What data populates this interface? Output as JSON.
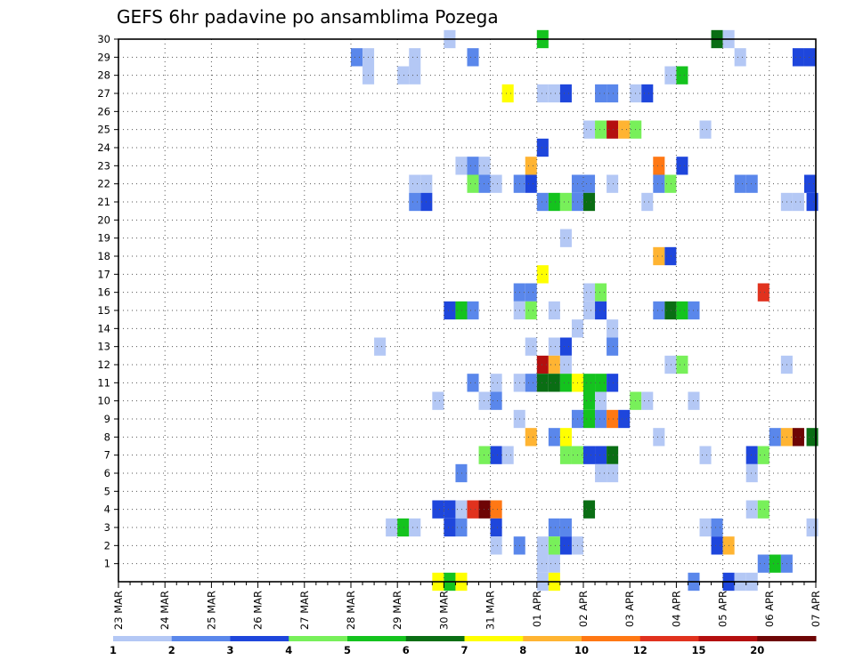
{
  "chart_data": {
    "type": "heatmap",
    "title": "GEFS 6hr padavine po ansamblima Pozega",
    "xlabel": "",
    "ylabel": "",
    "x_tick_labels": [
      "23 MAR",
      "24 MAR",
      "25 MAR",
      "26 MAR",
      "27 MAR",
      "28 MAR",
      "29 MAR",
      "30 MAR",
      "31 MAR",
      "01 APR",
      "02 APR",
      "03 APR",
      "04 APR",
      "05 APR",
      "06 APR",
      "07 APR"
    ],
    "x_steps_per_day": 4,
    "x_range": [
      0,
      60
    ],
    "y_tick_labels": [
      1,
      2,
      3,
      4,
      5,
      6,
      7,
      8,
      9,
      10,
      11,
      12,
      13,
      14,
      15,
      16,
      17,
      18,
      19,
      20,
      21,
      22,
      23,
      24,
      25,
      26,
      27,
      28,
      29,
      30
    ],
    "y_range": [
      0,
      30
    ],
    "grid": true,
    "colorbar": {
      "boundaries": [
        "1",
        "2",
        "3",
        "4",
        "5",
        "6",
        "7",
        "8",
        "10",
        "12",
        "15",
        "20"
      ],
      "colors": [
        "#b4c8f5",
        "#5a87eb",
        "#1e46dc",
        "#78f05a",
        "#14c31e",
        "#0a6e14",
        "#ffff00",
        "#ffb432",
        "#ff7814",
        "#e1321e",
        "#b40f0f",
        "#6e0505"
      ],
      "placement": "bottom"
    },
    "cells": [
      {
        "x": 28.5,
        "m": 30,
        "c": 0
      },
      {
        "x": 36.5,
        "m": 30,
        "c": 4
      },
      {
        "x": 51.5,
        "m": 30,
        "c": 5
      },
      {
        "x": 52.5,
        "m": 30,
        "c": 0
      },
      {
        "x": 20.5,
        "m": 29,
        "c": 1
      },
      {
        "x": 21.5,
        "m": 29,
        "c": 0
      },
      {
        "x": 25.5,
        "m": 29,
        "c": 0
      },
      {
        "x": 30.5,
        "m": 29,
        "c": 1
      },
      {
        "x": 53.5,
        "m": 29,
        "c": 0
      },
      {
        "x": 58.5,
        "m": 29,
        "c": 2
      },
      {
        "x": 59.5,
        "m": 29,
        "c": 2
      },
      {
        "x": 21.5,
        "m": 28,
        "c": 0
      },
      {
        "x": 24.5,
        "m": 28,
        "c": 0
      },
      {
        "x": 25.5,
        "m": 28,
        "c": 0
      },
      {
        "x": 47.5,
        "m": 28,
        "c": 0
      },
      {
        "x": 48.5,
        "m": 28,
        "c": 4
      },
      {
        "x": 33.5,
        "m": 27,
        "c": 6
      },
      {
        "x": 36.5,
        "m": 27,
        "c": 0
      },
      {
        "x": 37.5,
        "m": 27,
        "c": 0
      },
      {
        "x": 38.5,
        "m": 27,
        "c": 2
      },
      {
        "x": 41.5,
        "m": 27,
        "c": 1
      },
      {
        "x": 42.5,
        "m": 27,
        "c": 1
      },
      {
        "x": 44.5,
        "m": 27,
        "c": 0
      },
      {
        "x": 45.5,
        "m": 27,
        "c": 2
      },
      {
        "x": 40.5,
        "m": 25,
        "c": 0
      },
      {
        "x": 41.5,
        "m": 25,
        "c": 3
      },
      {
        "x": 42.5,
        "m": 25,
        "c": 10
      },
      {
        "x": 43.5,
        "m": 25,
        "c": 7
      },
      {
        "x": 44.5,
        "m": 25,
        "c": 3
      },
      {
        "x": 50.5,
        "m": 25,
        "c": 0
      },
      {
        "x": 36.5,
        "m": 24,
        "c": 2
      },
      {
        "x": 29.5,
        "m": 23,
        "c": 0
      },
      {
        "x": 30.5,
        "m": 23,
        "c": 1
      },
      {
        "x": 31.5,
        "m": 23,
        "c": 0
      },
      {
        "x": 35.5,
        "m": 23,
        "c": 7
      },
      {
        "x": 46.5,
        "m": 23,
        "c": 8
      },
      {
        "x": 48.5,
        "m": 23,
        "c": 2
      },
      {
        "x": 25.5,
        "m": 22,
        "c": 0
      },
      {
        "x": 26.5,
        "m": 22,
        "c": 0
      },
      {
        "x": 30.5,
        "m": 22,
        "c": 3
      },
      {
        "x": 31.5,
        "m": 22,
        "c": 1
      },
      {
        "x": 32.5,
        "m": 22,
        "c": 0
      },
      {
        "x": 34.5,
        "m": 22,
        "c": 1
      },
      {
        "x": 35.5,
        "m": 22,
        "c": 2
      },
      {
        "x": 39.5,
        "m": 22,
        "c": 1
      },
      {
        "x": 40.5,
        "m": 22,
        "c": 1
      },
      {
        "x": 42.5,
        "m": 22,
        "c": 0
      },
      {
        "x": 46.5,
        "m": 22,
        "c": 1
      },
      {
        "x": 47.5,
        "m": 22,
        "c": 3
      },
      {
        "x": 53.5,
        "m": 22,
        "c": 1
      },
      {
        "x": 54.5,
        "m": 22,
        "c": 1
      },
      {
        "x": 59.5,
        "m": 22,
        "c": 2
      },
      {
        "x": 25.5,
        "m": 21,
        "c": 1
      },
      {
        "x": 26.5,
        "m": 21,
        "c": 2
      },
      {
        "x": 36.5,
        "m": 21,
        "c": 1
      },
      {
        "x": 37.5,
        "m": 21,
        "c": 4
      },
      {
        "x": 38.5,
        "m": 21,
        "c": 3
      },
      {
        "x": 39.5,
        "m": 21,
        "c": 1
      },
      {
        "x": 40.5,
        "m": 21,
        "c": 5
      },
      {
        "x": 45.5,
        "m": 21,
        "c": 0
      },
      {
        "x": 57.5,
        "m": 21,
        "c": 0
      },
      {
        "x": 58.5,
        "m": 21,
        "c": 0
      },
      {
        "x": 59.7,
        "m": 21,
        "c": 2
      },
      {
        "x": 38.5,
        "m": 19,
        "c": 0
      },
      {
        "x": 46.5,
        "m": 18,
        "c": 7
      },
      {
        "x": 47.5,
        "m": 18,
        "c": 2
      },
      {
        "x": 36.5,
        "m": 17,
        "c": 6
      },
      {
        "x": 34.5,
        "m": 16,
        "c": 1
      },
      {
        "x": 35.5,
        "m": 16,
        "c": 1
      },
      {
        "x": 40.5,
        "m": 16,
        "c": 0
      },
      {
        "x": 41.5,
        "m": 16,
        "c": 3
      },
      {
        "x": 55.5,
        "m": 16,
        "c": 9
      },
      {
        "x": 28.5,
        "m": 15,
        "c": 2
      },
      {
        "x": 29.5,
        "m": 15,
        "c": 4
      },
      {
        "x": 30.5,
        "m": 15,
        "c": 1
      },
      {
        "x": 34.5,
        "m": 15,
        "c": 0
      },
      {
        "x": 35.5,
        "m": 15,
        "c": 3
      },
      {
        "x": 37.5,
        "m": 15,
        "c": 0
      },
      {
        "x": 40.5,
        "m": 15,
        "c": 0
      },
      {
        "x": 41.5,
        "m": 15,
        "c": 2
      },
      {
        "x": 46.5,
        "m": 15,
        "c": 1
      },
      {
        "x": 47.5,
        "m": 15,
        "c": 5
      },
      {
        "x": 48.5,
        "m": 15,
        "c": 4
      },
      {
        "x": 49.5,
        "m": 15,
        "c": 1
      },
      {
        "x": 39.5,
        "m": 14,
        "c": 0
      },
      {
        "x": 42.5,
        "m": 14,
        "c": 0
      },
      {
        "x": 22.5,
        "m": 13,
        "c": 0
      },
      {
        "x": 35.5,
        "m": 13,
        "c": 0
      },
      {
        "x": 37.5,
        "m": 13,
        "c": 0
      },
      {
        "x": 38.5,
        "m": 13,
        "c": 2
      },
      {
        "x": 42.5,
        "m": 13,
        "c": 1
      },
      {
        "x": 36.5,
        "m": 12,
        "c": 10
      },
      {
        "x": 37.5,
        "m": 12,
        "c": 7
      },
      {
        "x": 38.5,
        "m": 12,
        "c": 0
      },
      {
        "x": 47.5,
        "m": 12,
        "c": 0
      },
      {
        "x": 48.5,
        "m": 12,
        "c": 3
      },
      {
        "x": 57.5,
        "m": 12,
        "c": 0
      },
      {
        "x": 30.5,
        "m": 11,
        "c": 1
      },
      {
        "x": 32.5,
        "m": 11,
        "c": 0
      },
      {
        "x": 34.5,
        "m": 11,
        "c": 0
      },
      {
        "x": 35.5,
        "m": 11,
        "c": 1
      },
      {
        "x": 36.5,
        "m": 11,
        "c": 5
      },
      {
        "x": 37.5,
        "m": 11,
        "c": 5
      },
      {
        "x": 38.5,
        "m": 11,
        "c": 4
      },
      {
        "x": 39.5,
        "m": 11,
        "c": 6
      },
      {
        "x": 40.5,
        "m": 11,
        "c": 4
      },
      {
        "x": 41.5,
        "m": 11,
        "c": 4
      },
      {
        "x": 42.5,
        "m": 11,
        "c": 2
      },
      {
        "x": 27.5,
        "m": 10,
        "c": 0
      },
      {
        "x": 31.5,
        "m": 10,
        "c": 0
      },
      {
        "x": 32.5,
        "m": 10,
        "c": 1
      },
      {
        "x": 40.5,
        "m": 10,
        "c": 4
      },
      {
        "x": 41.5,
        "m": 10,
        "c": 0
      },
      {
        "x": 44.5,
        "m": 10,
        "c": 3
      },
      {
        "x": 45.5,
        "m": 10,
        "c": 0
      },
      {
        "x": 49.5,
        "m": 10,
        "c": 0
      },
      {
        "x": 34.5,
        "m": 9,
        "c": 0
      },
      {
        "x": 39.5,
        "m": 9,
        "c": 1
      },
      {
        "x": 40.5,
        "m": 9,
        "c": 4
      },
      {
        "x": 41.5,
        "m": 9,
        "c": 1
      },
      {
        "x": 42.5,
        "m": 9,
        "c": 8
      },
      {
        "x": 43.5,
        "m": 9,
        "c": 2
      },
      {
        "x": 35.5,
        "m": 8,
        "c": 7
      },
      {
        "x": 37.5,
        "m": 8,
        "c": 1
      },
      {
        "x": 38.5,
        "m": 8,
        "c": 6
      },
      {
        "x": 46.5,
        "m": 8,
        "c": 0
      },
      {
        "x": 56.5,
        "m": 8,
        "c": 1
      },
      {
        "x": 57.5,
        "m": 8,
        "c": 7
      },
      {
        "x": 58.5,
        "m": 8,
        "c": 11
      },
      {
        "x": 59.7,
        "m": 8,
        "c": 5
      },
      {
        "x": 31.5,
        "m": 7,
        "c": 3
      },
      {
        "x": 32.5,
        "m": 7,
        "c": 2
      },
      {
        "x": 33.5,
        "m": 7,
        "c": 0
      },
      {
        "x": 38.5,
        "m": 7,
        "c": 3
      },
      {
        "x": 39.5,
        "m": 7,
        "c": 3
      },
      {
        "x": 40.5,
        "m": 7,
        "c": 2
      },
      {
        "x": 41.5,
        "m": 7,
        "c": 2
      },
      {
        "x": 42.5,
        "m": 7,
        "c": 5
      },
      {
        "x": 50.5,
        "m": 7,
        "c": 0
      },
      {
        "x": 54.5,
        "m": 7,
        "c": 2
      },
      {
        "x": 55.5,
        "m": 7,
        "c": 3
      },
      {
        "x": 29.5,
        "m": 6,
        "c": 1
      },
      {
        "x": 41.5,
        "m": 6,
        "c": 0
      },
      {
        "x": 42.5,
        "m": 6,
        "c": 0
      },
      {
        "x": 54.5,
        "m": 6,
        "c": 0
      },
      {
        "x": 27.5,
        "m": 4,
        "c": 2
      },
      {
        "x": 28.5,
        "m": 4,
        "c": 2
      },
      {
        "x": 29.5,
        "m": 4,
        "c": 0
      },
      {
        "x": 30.5,
        "m": 4,
        "c": 9
      },
      {
        "x": 31.5,
        "m": 4,
        "c": 11
      },
      {
        "x": 32.5,
        "m": 4,
        "c": 8
      },
      {
        "x": 40.5,
        "m": 4,
        "c": 5
      },
      {
        "x": 54.5,
        "m": 4,
        "c": 0
      },
      {
        "x": 55.5,
        "m": 4,
        "c": 3
      },
      {
        "x": 23.5,
        "m": 3,
        "c": 0
      },
      {
        "x": 24.5,
        "m": 3,
        "c": 4
      },
      {
        "x": 25.5,
        "m": 3,
        "c": 0
      },
      {
        "x": 28.5,
        "m": 3,
        "c": 2
      },
      {
        "x": 29.5,
        "m": 3,
        "c": 1
      },
      {
        "x": 32.5,
        "m": 3,
        "c": 2
      },
      {
        "x": 37.5,
        "m": 3,
        "c": 1
      },
      {
        "x": 38.5,
        "m": 3,
        "c": 1
      },
      {
        "x": 50.5,
        "m": 3,
        "c": 0
      },
      {
        "x": 51.5,
        "m": 3,
        "c": 1
      },
      {
        "x": 59.7,
        "m": 3,
        "c": 0
      },
      {
        "x": 32.5,
        "m": 2,
        "c": 0
      },
      {
        "x": 34.5,
        "m": 2,
        "c": 1
      },
      {
        "x": 36.5,
        "m": 2,
        "c": 0
      },
      {
        "x": 37.5,
        "m": 2,
        "c": 3
      },
      {
        "x": 38.5,
        "m": 2,
        "c": 2
      },
      {
        "x": 39.5,
        "m": 2,
        "c": 0
      },
      {
        "x": 51.5,
        "m": 2,
        "c": 2
      },
      {
        "x": 52.5,
        "m": 2,
        "c": 7
      },
      {
        "x": 36.5,
        "m": 1,
        "c": 0
      },
      {
        "x": 37.5,
        "m": 1,
        "c": 0
      },
      {
        "x": 55.5,
        "m": 1,
        "c": 1
      },
      {
        "x": 56.5,
        "m": 1,
        "c": 4
      },
      {
        "x": 57.5,
        "m": 1,
        "c": 1
      },
      {
        "x": 27.5,
        "m": 0,
        "c": 6
      },
      {
        "x": 28.5,
        "m": 0,
        "c": 4
      },
      {
        "x": 29.5,
        "m": 0,
        "c": 6
      },
      {
        "x": 36.5,
        "m": 0,
        "c": 0
      },
      {
        "x": 37.5,
        "m": 0,
        "c": 6
      },
      {
        "x": 49.5,
        "m": 0,
        "c": 1
      },
      {
        "x": 52.5,
        "m": 0,
        "c": 2
      },
      {
        "x": 53.5,
        "m": 0,
        "c": 0
      },
      {
        "x": 54.5,
        "m": 0,
        "c": 0
      }
    ]
  }
}
